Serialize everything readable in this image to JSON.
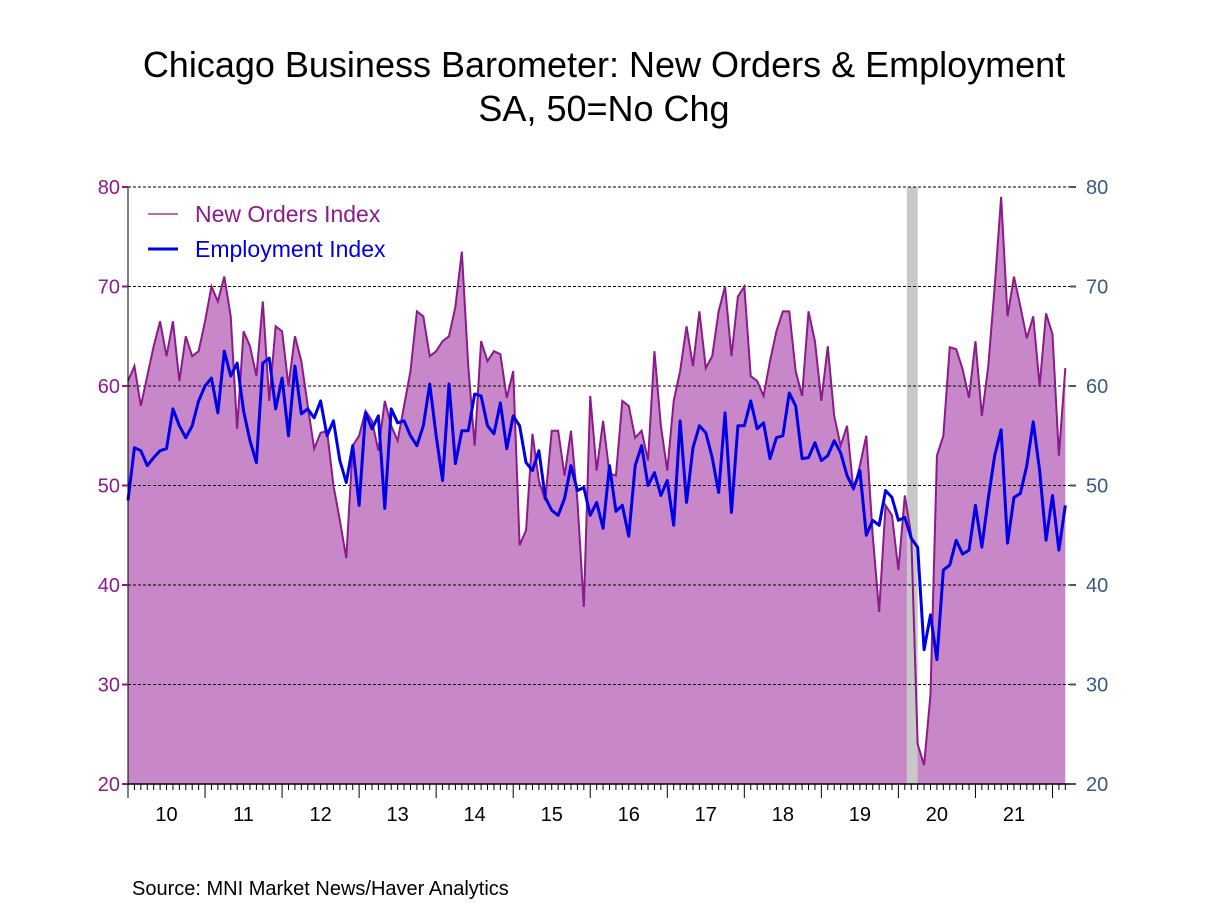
{
  "chart_data": {
    "type": "area",
    "title": "Chicago Business Barometer: New Orders & Employment",
    "subtitle": "SA, 50=No Chg",
    "source": "Source:  MNI Market News/Haver Analytics",
    "x_start": "2010-01",
    "x_frequency": "monthly",
    "x_tick_labels": [
      "10",
      "11",
      "12",
      "13",
      "14",
      "15",
      "16",
      "17",
      "18",
      "19",
      "20",
      "21"
    ],
    "ylim_left": [
      20,
      80
    ],
    "ylim_right": [
      20,
      80
    ],
    "y_ticks": [
      20,
      30,
      40,
      50,
      60,
      70,
      80
    ],
    "grid": true,
    "legend_placement": "top-left",
    "recession_shading": [
      "2020-02",
      "2020-04"
    ],
    "colors": {
      "new_orders_fill": "#c887c8",
      "new_orders_line": "#8b1a8b",
      "employment_line": "#0000e6",
      "recession": "#c8c8c8",
      "left_axis": "#8b1a8b",
      "right_axis": "#3a5a80"
    },
    "series": [
      {
        "name": "New Orders Index",
        "style": "area",
        "axis": "left",
        "values": [
          60.5,
          62,
          58,
          61,
          64,
          66.5,
          63,
          66.5,
          60.5,
          65,
          63,
          63.5,
          66.5,
          70,
          68.5,
          71,
          67,
          55.7,
          65.5,
          64,
          61,
          68.5,
          58.5,
          66,
          65.5,
          60,
          65,
          62.5,
          58,
          53.7,
          55.3,
          55.5,
          50,
          46.5,
          42.7,
          54,
          55,
          57.5,
          56.5,
          53.5,
          58.5,
          56,
          54.5,
          58,
          61.5,
          67.5,
          67,
          63,
          63.5,
          64.5,
          65,
          68,
          73.5,
          62,
          54,
          64.5,
          62.5,
          63.5,
          63.2,
          58.8,
          61.5,
          44,
          45.5,
          55.2,
          50.5,
          48.5,
          55.5,
          55.5,
          51,
          55.5,
          48.5,
          37.8,
          59,
          51.5,
          56.5,
          51.2,
          51,
          58.5,
          58,
          54.8,
          55.5,
          52.5,
          63.5,
          56,
          51.5,
          58.5,
          61.5,
          66,
          62,
          67.5,
          61.8,
          63,
          67.5,
          70,
          63,
          69,
          70,
          61,
          60.5,
          59,
          62.5,
          65.5,
          67.5,
          67.5,
          61.5,
          59,
          67.5,
          64.5,
          58.5,
          64,
          57,
          54,
          56,
          49.5,
          52,
          55,
          45,
          37.3,
          48,
          47,
          41.5,
          49,
          45,
          24,
          21.9,
          29,
          53,
          55,
          63.9,
          63.7,
          61.7,
          58.8,
          64.5,
          57,
          62,
          70,
          79,
          67,
          71,
          68,
          64.8,
          67,
          60,
          67.3,
          65.2,
          53,
          61.8
        ]
      },
      {
        "name": "Employment Index",
        "style": "line",
        "axis": "left",
        "values": [
          48.5,
          53.8,
          53.5,
          52,
          52.8,
          53.5,
          53.7,
          57.7,
          56,
          54.8,
          56,
          58.5,
          60,
          60.8,
          57.3,
          63.5,
          61,
          62.3,
          57.5,
          54.5,
          52.3,
          62.3,
          62.8,
          57.7,
          60.8,
          55,
          62,
          57.2,
          57.7,
          56.8,
          58.5,
          55,
          56.5,
          52.5,
          50.3,
          54,
          48,
          57.3,
          55.7,
          57,
          47.7,
          57.7,
          56.3,
          56.5,
          55,
          54,
          56,
          60.2,
          55,
          50.5,
          60.2,
          52.2,
          55.5,
          55.5,
          59.2,
          59,
          56,
          55.2,
          58.3,
          53.7,
          57,
          56,
          52.3,
          51.5,
          53.5,
          48.8,
          47.5,
          47,
          48.7,
          52,
          49.5,
          49.8,
          47,
          48.3,
          45.7,
          52,
          47.4,
          48,
          44.9,
          52,
          54,
          50,
          51.3,
          49,
          50.5,
          46,
          56.5,
          48.3,
          53.8,
          56,
          55.3,
          52.8,
          49.3,
          57.3,
          47.3,
          56,
          56,
          58.5,
          55.7,
          56.3,
          52.7,
          54.8,
          55,
          59.3,
          58,
          52.7,
          52.8,
          54.3,
          52.5,
          53,
          54.5,
          53.3,
          51,
          49.7,
          51.5,
          45,
          46.5,
          46,
          49.5,
          48.8,
          46.5,
          46.8,
          44.7,
          43.8,
          33.5,
          37,
          32.5,
          41.5,
          42,
          44.5,
          43.1,
          43.5,
          48,
          43.8,
          48.7,
          53,
          55.6,
          44.2,
          48.8,
          49.2,
          52,
          56.4,
          51.5,
          44.5,
          49,
          43.5,
          48
        ]
      }
    ]
  }
}
